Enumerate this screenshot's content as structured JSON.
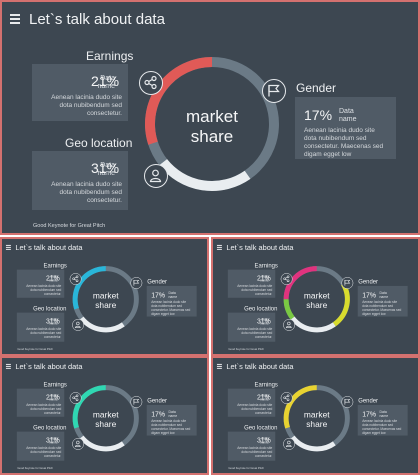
{
  "slide": {
    "title": "Let`s talk about data",
    "center_line1": "market",
    "center_line2": "share",
    "footer": "Good Keynote for Great Pitch",
    "earnings": {
      "title": "Earnings",
      "label_line1": "Data",
      "label_line2": "name",
      "percent": "21%",
      "desc_line1": "Aenean lacinia  dudo  site",
      "desc_line2": "dota nubibendum sed",
      "desc_line3": "consectetur."
    },
    "geo": {
      "title": "Geo location",
      "label_line1": "Data",
      "label_line2": "name",
      "percent": "31%",
      "desc_line1": "Aenean lacinia  dudo  site",
      "desc_line2": "dota nubibendum sed",
      "desc_line3": "consectetur."
    },
    "gender": {
      "title": "Gender",
      "label_line1": "Data",
      "label_line2": "name",
      "percent": "17%",
      "desc_line1": "Aenean lacinia  dudo  site",
      "desc_line2": "dota nubibendum sed",
      "desc_line3": "consectetur.  Maecenas sed",
      "desc_line4": "digam egget low"
    }
  },
  "variants": [
    {
      "accent": "#e05a57"
    },
    {
      "accent": "#29b6d9"
    },
    {
      "accent": "#e0337e",
      "accent2": "#d9dc2e",
      "accent3": "#7ac943"
    },
    {
      "accent": "#2fd7b2"
    },
    {
      "accent": "#e8d331"
    }
  ],
  "colors": {
    "background": "#3d4751",
    "card": "#505b66",
    "ring_base": "#6b7a86",
    "ring_light": "#e9edf0",
    "border": "#d4716f"
  },
  "icons": [
    "menu-icon",
    "share-icon",
    "flag-icon",
    "user-icon"
  ]
}
